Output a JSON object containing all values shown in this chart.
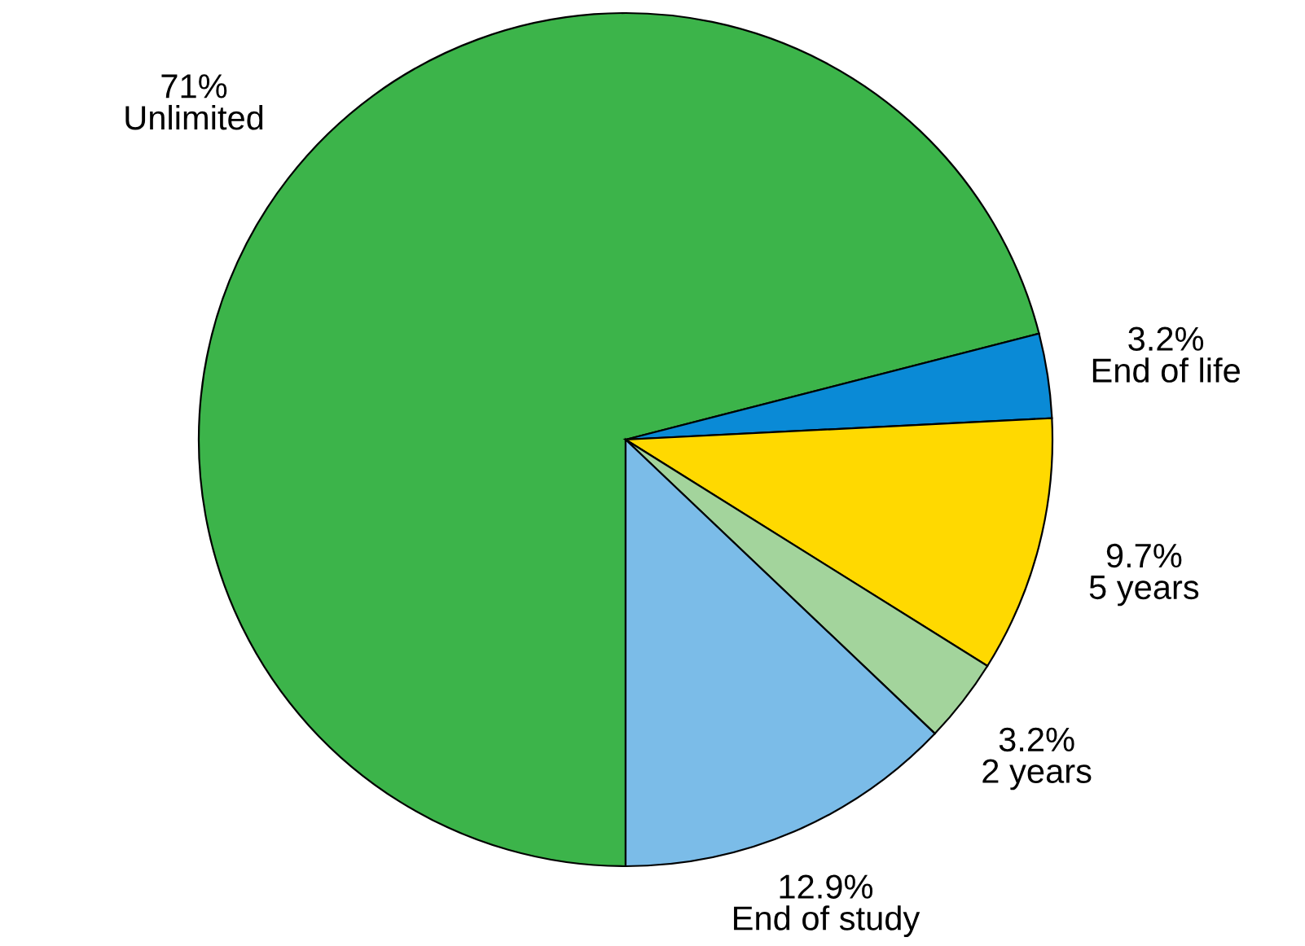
{
  "chart_data": {
    "type": "pie",
    "categories": [
      "Unlimited",
      "End of life",
      "5 years",
      "2 years",
      "End of study"
    ],
    "values": [
      71,
      3.2,
      9.7,
      3.2,
      12.9
    ],
    "value_labels": [
      "71%",
      "3.2%",
      "9.7%",
      "3.2%",
      "12.9%"
    ],
    "colors": [
      "#3cb44a",
      "#0a8ad6",
      "#ffd900",
      "#a3d49c",
      "#7bbce8"
    ],
    "legend": false
  }
}
